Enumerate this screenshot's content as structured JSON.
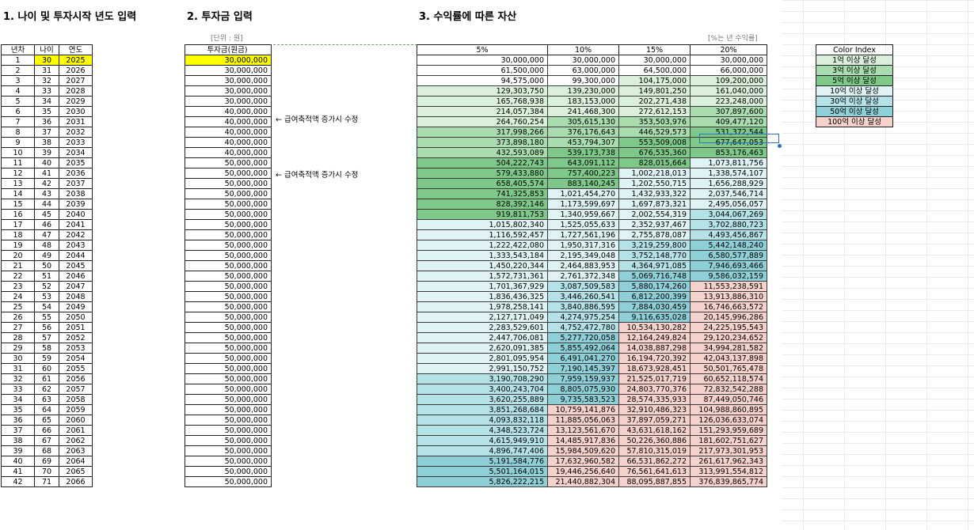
{
  "titles": {
    "section1": "1. 나이 및 투자시작 년도 입력",
    "section2": "2. 투자금 입력",
    "section3": "3. 수익률에 따른 자산"
  },
  "units": {
    "won": "[단위 : 원]",
    "annual_return": "[%는 년 수익률]"
  },
  "notes": [
    "← 급여축적액 증가시 수정",
    "← 급여축적액 증가시 수정"
  ],
  "age_table": {
    "headers": [
      "년차",
      "나이",
      "연도"
    ],
    "start_age": 30,
    "start_year": 2025,
    "rows": 42
  },
  "investment": {
    "header": "투자금(원금)",
    "values": [
      "30,000,000",
      "30,000,000",
      "30,000,000",
      "30,000,000",
      "30,000,000",
      "40,000,000",
      "40,000,000",
      "40,000,000",
      "40,000,000",
      "40,000,000",
      "50,000,000",
      "50,000,000",
      "50,000,000",
      "50,000,000",
      "50,000,000",
      "50,000,000",
      "50,000,000",
      "50,000,000",
      "50,000,000",
      "50,000,000",
      "50,000,000",
      "50,000,000",
      "50,000,000",
      "50,000,000",
      "50,000,000",
      "50,000,000",
      "50,000,000",
      "50,000,000",
      "50,000,000",
      "50,000,000",
      "50,000,000",
      "50,000,000",
      "50,000,000",
      "50,000,000",
      "50,000,000",
      "50,000,000",
      "50,000,000",
      "50,000,000",
      "50,000,000",
      "50,000,000",
      "50,000,000",
      "50,000,000"
    ]
  },
  "returns": {
    "headers": [
      "5%",
      "10%",
      "15%",
      "20%"
    ],
    "columns": [
      [
        "30,000,000",
        "61,500,000",
        "94,575,000",
        "129,303,750",
        "165,768,938",
        "214,057,384",
        "264,760,254",
        "317,998,266",
        "373,898,180",
        "432,593,089",
        "504,222,743",
        "579,433,880",
        "658,405,574",
        "741,325,853",
        "828,392,146",
        "919,811,753",
        "1,015,802,340",
        "1,116,592,457",
        "1,222,422,080",
        "1,333,543,184",
        "1,450,220,344",
        "1,572,731,361",
        "1,701,367,929",
        "1,836,436,325",
        "1,978,258,141",
        "2,127,171,049",
        "2,283,529,601",
        "2,447,706,081",
        "2,620,091,385",
        "2,801,095,954",
        "2,991,150,752",
        "3,190,708,290",
        "3,400,243,704",
        "3,620,255,889",
        "3,851,268,684",
        "4,093,832,118",
        "4,348,523,724",
        "4,615,949,910",
        "4,896,747,406",
        "5,191,584,776",
        "5,501,164,015",
        "5,826,222,215"
      ],
      [
        "30,000,000",
        "63,000,000",
        "99,300,000",
        "139,230,000",
        "183,153,000",
        "241,468,300",
        "305,615,130",
        "376,176,643",
        "453,794,307",
        "539,173,738",
        "643,091,112",
        "757,400,223",
        "883,140,245",
        "1,021,454,270",
        "1,173,599,697",
        "1,340,959,667",
        "1,525,055,633",
        "1,727,561,196",
        "1,950,317,316",
        "2,195,349,048",
        "2,464,883,953",
        "2,761,372,348",
        "3,087,509,583",
        "3,446,260,541",
        "3,840,886,595",
        "4,274,975,254",
        "4,752,472,780",
        "5,277,720,058",
        "5,855,492,064",
        "6,491,041,270",
        "7,190,145,397",
        "7,959,159,937",
        "8,805,075,930",
        "9,735,583,523",
        "10,759,141,876",
        "11,885,056,063",
        "13,123,561,670",
        "14,485,917,836",
        "15,984,509,620",
        "17,632,960,582",
        "19,446,256,640",
        "21,440,882,304"
      ],
      [
        "30,000,000",
        "64,500,000",
        "104,175,000",
        "149,801,250",
        "202,271,438",
        "272,612,153",
        "353,503,976",
        "446,529,573",
        "553,509,008",
        "676,535,360",
        "828,015,664",
        "1,002,218,013",
        "1,202,550,715",
        "1,432,933,322",
        "1,697,873,321",
        "2,002,554,319",
        "2,352,937,467",
        "2,755,878,087",
        "3,219,259,800",
        "3,752,148,770",
        "4,364,971,085",
        "5,069,716,748",
        "5,880,174,260",
        "6,812,200,399",
        "7,884,030,459",
        "9,116,635,028",
        "10,534,130,282",
        "12,164,249,824",
        "14,038,887,298",
        "16,194,720,392",
        "18,673,928,451",
        "21,525,017,719",
        "24,803,770,376",
        "28,574,335,933",
        "32,910,486,323",
        "37,897,059,271",
        "43,631,618,162",
        "50,226,360,886",
        "57,810,315,019",
        "66,531,862,272",
        "76,561,641,613",
        "88,095,887,855"
      ],
      [
        "30,000,000",
        "66,000,000",
        "109,200,000",
        "161,040,000",
        "223,248,000",
        "307,897,600",
        "409,477,120",
        "531,372,544",
        "677,647,053",
        "853,176,463",
        "1,073,811,756",
        "1,338,574,107",
        "1,656,288,929",
        "2,037,546,714",
        "2,495,056,057",
        "3,044,067,269",
        "3,702,880,723",
        "4,493,456,867",
        "5,442,148,240",
        "6,580,577,889",
        "7,946,693,466",
        "9,586,032,159",
        "11,553,238,591",
        "13,913,886,310",
        "16,746,663,572",
        "20,145,996,286",
        "24,225,195,543",
        "29,120,234,652",
        "34,994,281,582",
        "42,043,137,898",
        "50,501,765,478",
        "60,652,118,574",
        "72,832,542,288",
        "87,449,050,746",
        "104,988,860,895",
        "126,036,633,074",
        "151,293,959,689",
        "181,602,751,627",
        "217,973,301,953",
        "261,617,962,343",
        "313,991,554,812",
        "376,839,865,774"
      ]
    ]
  },
  "color_index": {
    "header": "Color Index",
    "items": [
      {
        "label": "1억 이상 달성",
        "color": "#daf0da"
      },
      {
        "label": "3억 이상 달성",
        "color": "#a9dcae"
      },
      {
        "label": "5억 이상 달성",
        "color": "#7ec989"
      },
      {
        "label": "10억 이상 달성",
        "color": "#dff2f4"
      },
      {
        "label": "30억 이상 달성",
        "color": "#b4e2e6"
      },
      {
        "label": "50억 이상 달성",
        "color": "#8fcfd7"
      },
      {
        "label": "100억 이상 달성",
        "color": "#f6d2cc"
      }
    ]
  },
  "highlight_color": "#ffff00"
}
